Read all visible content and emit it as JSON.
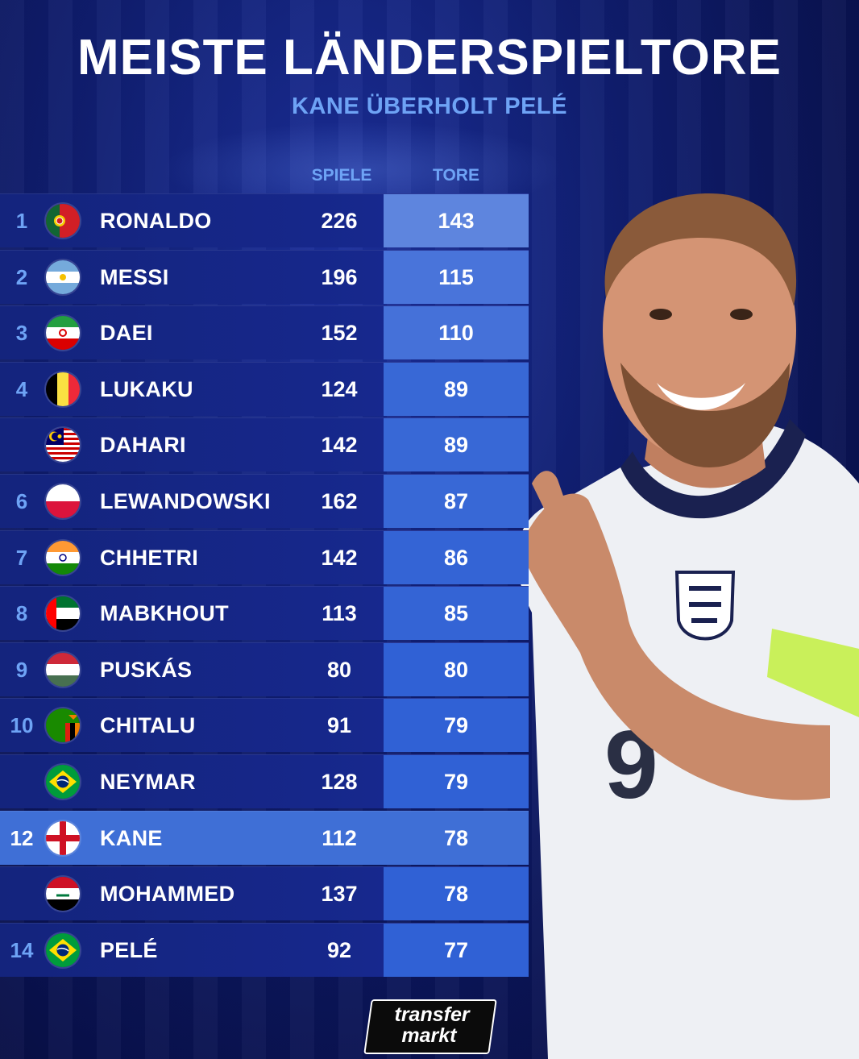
{
  "title": "MEISTE LÄNDERSPIELTORE",
  "subtitle": "KANE ÜBERHOLT PELÉ",
  "columns": {
    "games": "SPIELE",
    "goals": "TORE"
  },
  "brand": {
    "line1": "transfer",
    "line2": "markt"
  },
  "colors": {
    "background": "#0f1d6e",
    "accent": "#6ea3f5",
    "highlight_row": "#3f6fd6",
    "goals_column": "#4d7fe0"
  },
  "chart_data": {
    "type": "table",
    "title": "MEISTE LÄNDERSPIELTORE",
    "subtitle": "KANE ÜBERHOLT PELÉ",
    "columns": [
      "SPIELE",
      "TORE"
    ],
    "highlighted_player": "KANE",
    "rows": [
      {
        "rank": "1",
        "flag": "portugal-flag-icon",
        "name": "RONALDO",
        "games": 226,
        "goals": 143
      },
      {
        "rank": "2",
        "flag": "argentina-flag-icon",
        "name": "MESSI",
        "games": 196,
        "goals": 115
      },
      {
        "rank": "3",
        "flag": "iran-flag-icon",
        "name": "DAEI",
        "games": 152,
        "goals": 110
      },
      {
        "rank": "4",
        "flag": "belgium-flag-icon",
        "name": "LUKAKU",
        "games": 124,
        "goals": 89
      },
      {
        "rank": "",
        "flag": "malaysia-flag-icon",
        "name": "DAHARI",
        "games": 142,
        "goals": 89
      },
      {
        "rank": "6",
        "flag": "poland-flag-icon",
        "name": "LEWANDOWSKI",
        "games": 162,
        "goals": 87
      },
      {
        "rank": "7",
        "flag": "india-flag-icon",
        "name": "CHHETRI",
        "games": 142,
        "goals": 86
      },
      {
        "rank": "8",
        "flag": "uae-flag-icon",
        "name": "MABKHOUT",
        "games": 113,
        "goals": 85
      },
      {
        "rank": "9",
        "flag": "hungary-flag-icon",
        "name": "PUSKÁS",
        "games": 80,
        "goals": 80
      },
      {
        "rank": "10",
        "flag": "zambia-flag-icon",
        "name": "CHITALU",
        "games": 91,
        "goals": 79
      },
      {
        "rank": "",
        "flag": "brazil-flag-icon",
        "name": "NEYMAR",
        "games": 128,
        "goals": 79
      },
      {
        "rank": "12",
        "flag": "england-flag-icon",
        "name": "KANE",
        "games": 112,
        "goals": 78
      },
      {
        "rank": "",
        "flag": "iraq-flag-icon",
        "name": "MOHAMMED",
        "games": 137,
        "goals": 78
      },
      {
        "rank": "14",
        "flag": "brazil-flag-icon",
        "name": "PELÉ",
        "games": 92,
        "goals": 77
      }
    ]
  }
}
